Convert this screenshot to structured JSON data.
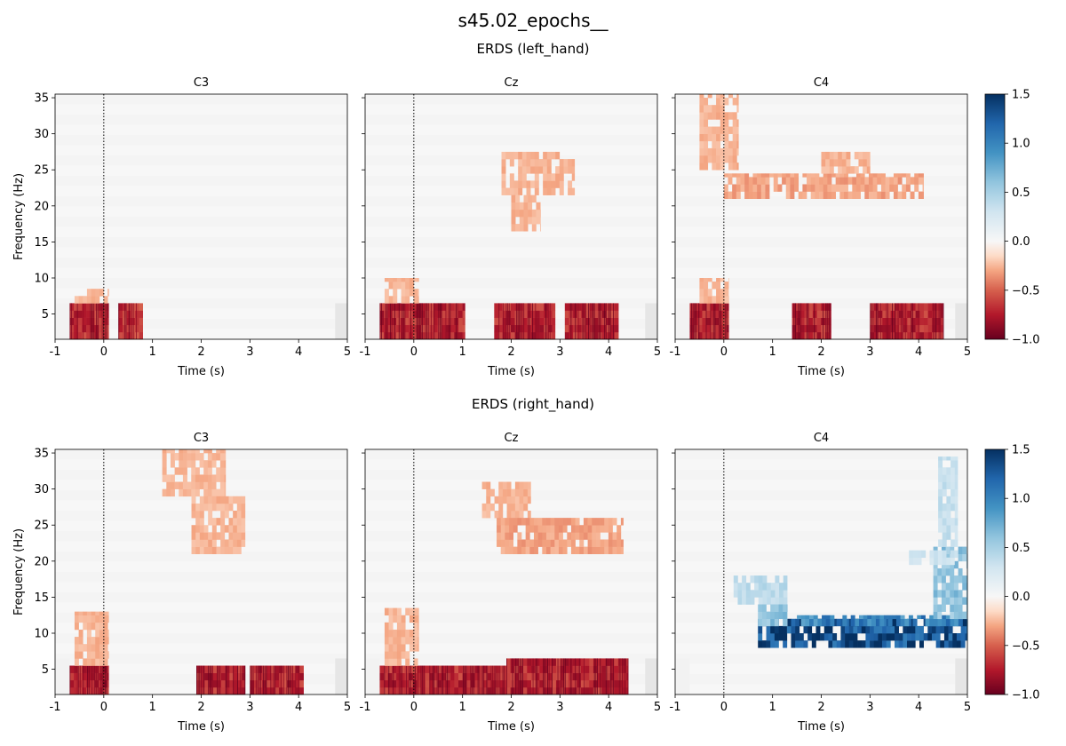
{
  "figure": {
    "suptitle": "s45.02_epochs__",
    "xlabel": "Time (s)",
    "ylabel": "Frequency (Hz)"
  },
  "colors": {
    "strong_neg": "#67001f",
    "neg": "#d6604d",
    "light_neg": "#fddbc7",
    "zero": "#f7f7f7",
    "light_pos": "#d1e5f0",
    "pos": "#4393c3",
    "strong_pos": "#053061",
    "blank": "#f2f2f2"
  },
  "chart_data": [
    {
      "type": "heatmap",
      "row_title": "ERDS (left_hand)",
      "panels": [
        {
          "title": "C3",
          "xlim": [
            -1,
            5
          ],
          "ylim": [
            1.5,
            35.5
          ],
          "xticks": [
            -1,
            0,
            1,
            2,
            3,
            4,
            5
          ],
          "yticks": [
            5,
            10,
            15,
            20,
            25,
            30,
            35
          ],
          "event_line_x": 0,
          "regions": [
            {
              "t": [
                -0.7,
                0.1
              ],
              "f": [
                1.5,
                6.5
              ],
              "v": -0.7
            },
            {
              "t": [
                0.3,
                0.8
              ],
              "f": [
                1.5,
                6.5
              ],
              "v": -0.65
            },
            {
              "t": [
                -0.6,
                0.1
              ],
              "f": [
                6.5,
                8.5
              ],
              "v": -0.25
            }
          ]
        },
        {
          "title": "Cz",
          "xlim": [
            -1,
            5
          ],
          "ylim": [
            1.5,
            35.5
          ],
          "xticks": [
            -1,
            0,
            1,
            2,
            3,
            4,
            5
          ],
          "yticks": [
            5,
            10,
            15,
            20,
            25,
            30,
            35
          ],
          "event_line_x": 0,
          "regions": [
            {
              "t": [
                -0.7,
                1.05
              ],
              "f": [
                1.5,
                6.5
              ],
              "v": -0.7
            },
            {
              "t": [
                1.65,
                2.9
              ],
              "f": [
                1.5,
                6.5
              ],
              "v": -0.7
            },
            {
              "t": [
                3.1,
                4.2
              ],
              "f": [
                1.5,
                6.5
              ],
              "v": -0.7
            },
            {
              "t": [
                -0.6,
                0.1
              ],
              "f": [
                6.5,
                10
              ],
              "v": -0.25
            },
            {
              "t": [
                1.8,
                3.3
              ],
              "f": [
                21.5,
                27.5
              ],
              "v": -0.25
            },
            {
              "t": [
                2.0,
                2.6
              ],
              "f": [
                16.5,
                21.5
              ],
              "v": -0.25
            }
          ]
        },
        {
          "title": "C4",
          "xlim": [
            -1,
            5
          ],
          "ylim": [
            1.5,
            35.5
          ],
          "xticks": [
            -1,
            0,
            1,
            2,
            3,
            4,
            5
          ],
          "yticks": [
            5,
            10,
            15,
            20,
            25,
            30,
            35
          ],
          "event_line_x": 0,
          "regions": [
            {
              "t": [
                -0.7,
                0.1
              ],
              "f": [
                1.5,
                6.5
              ],
              "v": -0.7
            },
            {
              "t": [
                1.4,
                2.2
              ],
              "f": [
                1.5,
                6.5
              ],
              "v": -0.7
            },
            {
              "t": [
                3.0,
                4.5
              ],
              "f": [
                1.5,
                6.5
              ],
              "v": -0.7
            },
            {
              "t": [
                -0.5,
                0.1
              ],
              "f": [
                6.5,
                10
              ],
              "v": -0.25
            },
            {
              "t": [
                -0.5,
                0.3
              ],
              "f": [
                25,
                35.5
              ],
              "v": -0.25
            },
            {
              "t": [
                0.0,
                4.1
              ],
              "f": [
                21,
                24.5
              ],
              "v": -0.3
            },
            {
              "t": [
                2.0,
                3.0
              ],
              "f": [
                24.5,
                27.5
              ],
              "v": -0.25
            }
          ]
        }
      ],
      "colorbar": {
        "vmin": -1.0,
        "vmax": 1.5,
        "ticks": [
          -1.0,
          -0.5,
          0.0,
          0.5,
          1.0,
          1.5
        ],
        "colormap": "RdBu"
      }
    },
    {
      "type": "heatmap",
      "row_title": "ERDS (right_hand)",
      "panels": [
        {
          "title": "C3",
          "xlim": [
            -1,
            5
          ],
          "ylim": [
            1.5,
            35.5
          ],
          "xticks": [
            -1,
            0,
            1,
            2,
            3,
            4,
            5
          ],
          "yticks": [
            5,
            10,
            15,
            20,
            25,
            30,
            35
          ],
          "event_line_x": 0,
          "regions": [
            {
              "t": [
                -0.7,
                0.1
              ],
              "f": [
                1.5,
                5.5
              ],
              "v": -0.7
            },
            {
              "t": [
                1.9,
                2.9
              ],
              "f": [
                1.5,
                5.5
              ],
              "v": -0.7
            },
            {
              "t": [
                3.0,
                4.1
              ],
              "f": [
                1.5,
                5.5
              ],
              "v": -0.7
            },
            {
              "t": [
                -0.6,
                0.1
              ],
              "f": [
                5.5,
                13
              ],
              "v": -0.25
            },
            {
              "t": [
                1.2,
                2.5
              ],
              "f": [
                29,
                35.5
              ],
              "v": -0.25
            },
            {
              "t": [
                1.8,
                2.9
              ],
              "f": [
                21,
                29
              ],
              "v": -0.25
            }
          ]
        },
        {
          "title": "Cz",
          "xlim": [
            -1,
            5
          ],
          "ylim": [
            1.5,
            35.5
          ],
          "xticks": [
            -1,
            0,
            1,
            2,
            3,
            4,
            5
          ],
          "yticks": [
            5,
            10,
            15,
            20,
            25,
            30,
            35
          ],
          "event_line_x": 0,
          "regions": [
            {
              "t": [
                -0.7,
                1.9
              ],
              "f": [
                1.5,
                5.5
              ],
              "v": -0.7
            },
            {
              "t": [
                1.9,
                4.4
              ],
              "f": [
                1.5,
                6.5
              ],
              "v": -0.7
            },
            {
              "t": [
                -0.6,
                0.1
              ],
              "f": [
                5.5,
                13.5
              ],
              "v": -0.25
            },
            {
              "t": [
                1.4,
                2.4
              ],
              "f": [
                26,
                31
              ],
              "v": -0.25
            },
            {
              "t": [
                1.7,
                4.3
              ],
              "f": [
                21,
                26
              ],
              "v": -0.3
            }
          ]
        },
        {
          "title": "C4",
          "xlim": [
            -1,
            5
          ],
          "ylim": [
            1.5,
            35.5
          ],
          "xticks": [
            -1,
            0,
            1,
            2,
            3,
            4,
            5
          ],
          "yticks": [
            5,
            10,
            15,
            20,
            25,
            30,
            35
          ],
          "event_line_x": 0,
          "regions": [
            {
              "t": [
                0.7,
                5.0
              ],
              "f": [
                8,
                12
              ],
              "v": 1.35
            },
            {
              "t": [
                1.5,
                5.0
              ],
              "f": [
                11,
                12.5
              ],
              "v": 1.0
            },
            {
              "t": [
                0.2,
                1.3
              ],
              "f": [
                14,
                18
              ],
              "v": 0.4
            },
            {
              "t": [
                0.7,
                1.3
              ],
              "f": [
                11,
                14
              ],
              "v": 0.6
            },
            {
              "t": [
                4.3,
                5.0
              ],
              "f": [
                12,
                22
              ],
              "v": 0.6
            },
            {
              "t": [
                3.8,
                4.8
              ],
              "f": [
                19.5,
                21.5
              ],
              "v": 0.3
            },
            {
              "t": [
                4.4,
                4.8
              ],
              "f": [
                22,
                34.5
              ],
              "v": 0.35
            }
          ]
        }
      ],
      "colorbar": {
        "vmin": -1.0,
        "vmax": 1.5,
        "ticks": [
          -1.0,
          -0.5,
          0.0,
          0.5,
          1.0,
          1.5
        ],
        "colormap": "RdBu"
      }
    }
  ]
}
